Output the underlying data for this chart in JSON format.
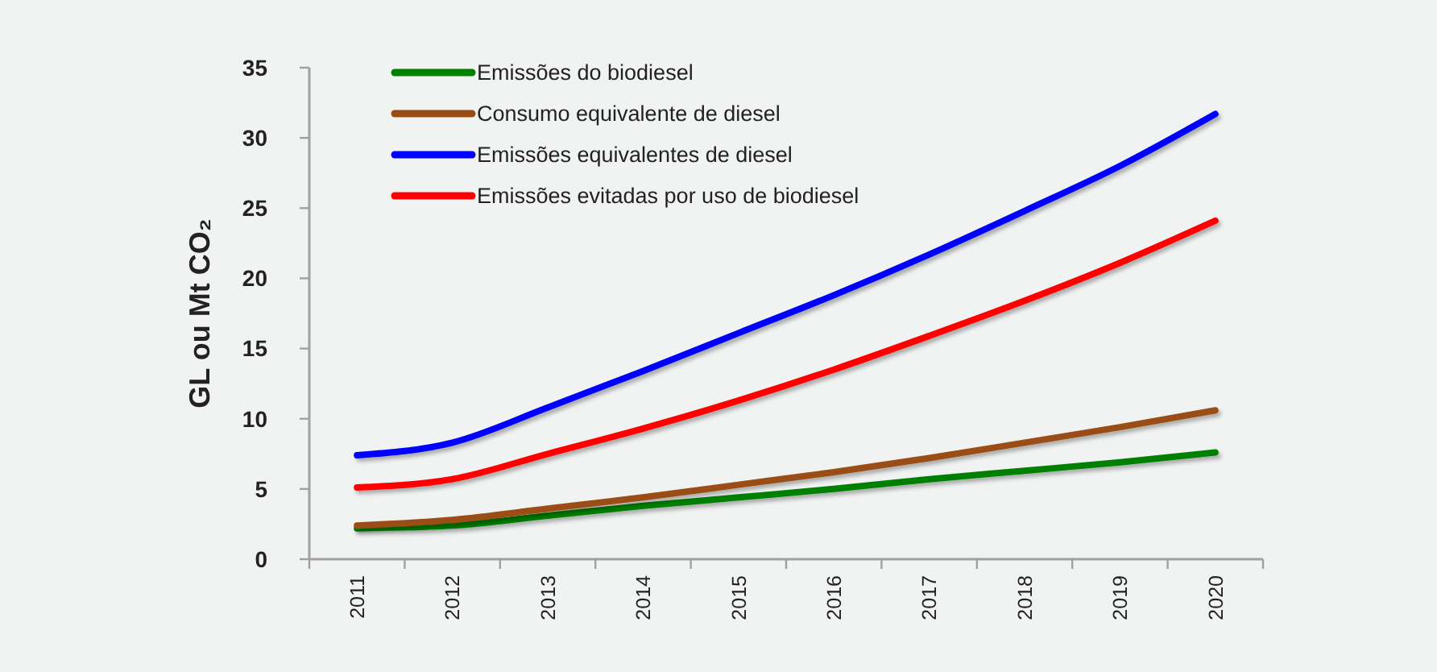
{
  "chart_data": {
    "type": "line",
    "ylabel": "GL ou Mt CO₂",
    "categories": [
      "2011",
      "2012",
      "2013",
      "2014",
      "2015",
      "2016",
      "2017",
      "2018",
      "2019",
      "2020"
    ],
    "series": [
      {
        "name": "Emissões do biodiesel",
        "color": "#008000",
        "values": [
          2.2,
          2.4,
          3.1,
          3.8,
          4.4,
          5.0,
          5.7,
          6.3,
          6.9,
          7.6
        ]
      },
      {
        "name": "Consumo equivalente de diesel",
        "color": "#9a4d12",
        "values": [
          2.4,
          2.8,
          3.6,
          4.4,
          5.3,
          6.2,
          7.2,
          8.3,
          9.4,
          10.6
        ]
      },
      {
        "name": "Emissões equivalentes de diesel",
        "color": "#0000ff",
        "values": [
          7.4,
          8.3,
          10.8,
          13.4,
          16.1,
          18.8,
          21.7,
          24.8,
          28.0,
          31.7
        ]
      },
      {
        "name": "Emissões evitadas por uso de biodiesel",
        "color": "#ff0000",
        "values": [
          5.1,
          5.7,
          7.5,
          9.3,
          11.3,
          13.5,
          15.9,
          18.4,
          21.1,
          24.1
        ]
      }
    ],
    "ylim": [
      0,
      35
    ],
    "yticks": [
      0,
      5,
      10,
      15,
      20,
      25,
      30,
      35
    ],
    "grid": false,
    "legend": "top left",
    "marker": "none",
    "line_style": "solid"
  }
}
